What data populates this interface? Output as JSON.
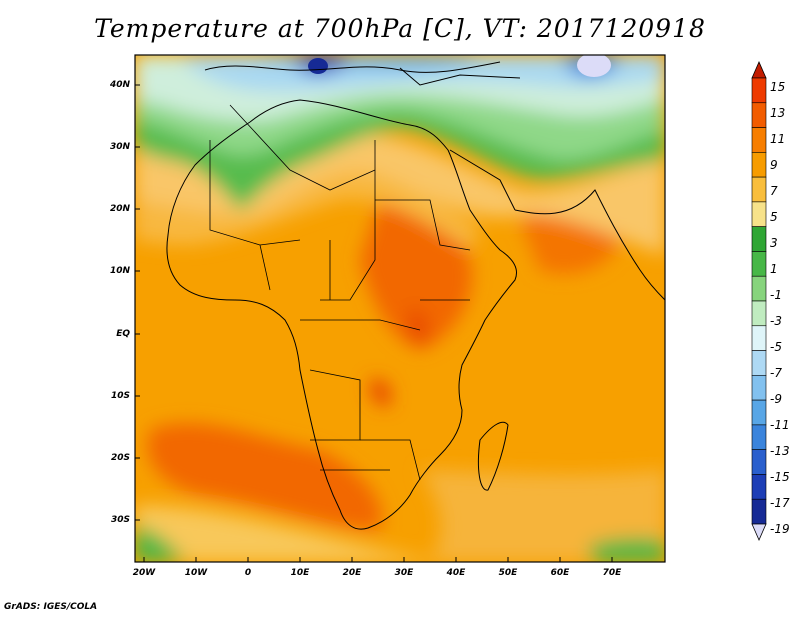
{
  "title": "Temperature at 700hPa [C], VT: 2017120918",
  "footer": "GrADS: IGES/COLA",
  "map": {
    "variable": "Temperature",
    "level": "700hPa",
    "units": "C",
    "valid_time": "2017120918",
    "lat_labels": [
      "40N",
      "30N",
      "20N",
      "10N",
      "EQ",
      "10S",
      "20S",
      "30S"
    ],
    "lon_labels": [
      "20W",
      "10W",
      "0",
      "10E",
      "20E",
      "30E",
      "40E",
      "50E",
      "60E",
      "70E"
    ]
  },
  "colorbar": {
    "labels": [
      "15",
      "13",
      "11",
      "9",
      "7",
      "5",
      "3",
      "1",
      "-1",
      "-3",
      "-5",
      "-7",
      "-9",
      "-11",
      "-13",
      "-15",
      "-17",
      "-19"
    ],
    "colors": [
      "#c21c00",
      "#ee3a00",
      "#f25c00",
      "#f77e00",
      "#f79c00",
      "#f9be3c",
      "#f7e28a",
      "#2fa634",
      "#47b747",
      "#87d47d",
      "#c0ecc0",
      "#dff5f9",
      "#aed9f4",
      "#82c1ef",
      "#58a6e6",
      "#3a84dc",
      "#2a5fcd",
      "#1d3eb6",
      "#162a95",
      "#101a6e"
    ],
    "under_color": "#dcdcf8"
  }
}
